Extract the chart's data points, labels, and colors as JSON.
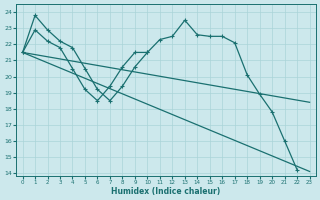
{
  "xlabel": "Humidex (Indice chaleur)",
  "xlim": [
    -0.5,
    23.5
  ],
  "ylim": [
    13.8,
    24.5
  ],
  "yticks": [
    14,
    15,
    16,
    17,
    18,
    19,
    20,
    21,
    22,
    23,
    24
  ],
  "xticks": [
    0,
    1,
    2,
    3,
    4,
    5,
    6,
    7,
    8,
    9,
    10,
    11,
    12,
    13,
    14,
    15,
    16,
    17,
    18,
    19,
    20,
    21,
    22,
    23
  ],
  "bg_color": "#cce8ec",
  "grid_color": "#aad4d8",
  "line_color": "#1a7070",
  "series": [
    {
      "x": [
        0,
        23
      ],
      "y": [
        21.5,
        14.1
      ],
      "marker": "",
      "lw": 0.9
    },
    {
      "x": [
        0,
        23
      ],
      "y": [
        21.5,
        18.4
      ],
      "marker": "",
      "lw": 0.9
    },
    {
      "x": [
        0,
        1,
        2,
        3,
        4,
        5,
        6,
        7,
        8,
        9,
        10,
        11,
        12,
        13,
        14,
        15,
        16,
        17,
        18,
        19,
        20,
        21,
        22
      ],
      "y": [
        21.5,
        23.8,
        22.9,
        22.2,
        21.8,
        20.5,
        19.2,
        18.5,
        19.4,
        20.6,
        21.5,
        22.3,
        22.5,
        23.5,
        22.6,
        22.5,
        22.5,
        22.1,
        20.1,
        18.9,
        17.8,
        16.0,
        14.2
      ],
      "marker": "+",
      "lw": 0.9
    },
    {
      "x": [
        0,
        1,
        2,
        3,
        4,
        5,
        6,
        7,
        8,
        9,
        10
      ],
      "y": [
        21.5,
        22.9,
        22.2,
        21.8,
        20.5,
        19.2,
        18.5,
        19.4,
        20.6,
        21.5,
        21.5
      ],
      "marker": "+",
      "lw": 0.9
    }
  ]
}
